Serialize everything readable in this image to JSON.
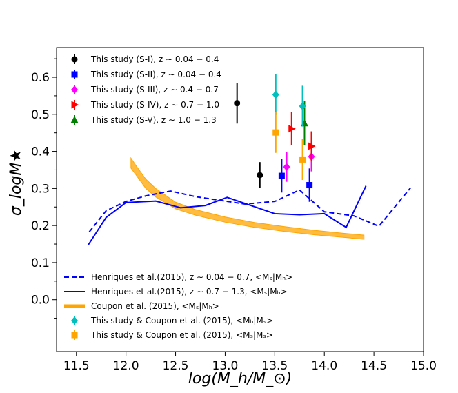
{
  "chart_data": {
    "type": "scatter",
    "xlabel": "log(M_h/M_⊙)",
    "ylabel": "σ_logM★",
    "xlim": [
      11.3,
      15.0
    ],
    "ylim": [
      -0.14,
      0.68
    ],
    "xticks": [
      "11.5",
      "12.0",
      "12.5",
      "13.0",
      "13.5",
      "14.0",
      "14.5",
      "15.0"
    ],
    "yticks": [
      "0.0",
      "0.1",
      "0.2",
      "0.3",
      "0.4",
      "0.5",
      "0.6"
    ],
    "points": [
      {
        "name": "This study (S-I), z ~ 0.04 − 0.4",
        "legend": "This study (S-I), z ∼ 0.04 − 0.4",
        "color": "#000000",
        "marker": "circle",
        "data": [
          {
            "x": 13.12,
            "y": 0.53,
            "err": 0.055
          },
          {
            "x": 13.35,
            "y": 0.336,
            "err": 0.035
          }
        ]
      },
      {
        "name": "This study (S-II), z ~ 0.04 − 0.4",
        "legend": "This study (S-II), z ∼ 0.04 − 0.4",
        "color": "#0000ff",
        "marker": "square",
        "data": [
          {
            "x": 13.57,
            "y": 0.334,
            "err": 0.045
          },
          {
            "x": 13.85,
            "y": 0.309,
            "err": 0.045
          }
        ]
      },
      {
        "name": "This study (S-III), z ~ 0.4 − 0.7",
        "legend": "This study (S-III), z ∼ 0.4 − 0.7",
        "color": "#ff00ff",
        "marker": "diamond",
        "data": [
          {
            "x": 13.62,
            "y": 0.358,
            "err": 0.04
          },
          {
            "x": 13.87,
            "y": 0.386,
            "err": 0.04
          }
        ]
      },
      {
        "name": "This study (S-IV), z ~ 0.7 − 1.0",
        "legend": "This study (S-IV), z ∼ 0.7 − 1.0",
        "color": "#ff0000",
        "marker": "triangle-right",
        "data": [
          {
            "x": 13.67,
            "y": 0.461,
            "err": 0.045
          },
          {
            "x": 13.87,
            "y": 0.414,
            "err": 0.04
          }
        ]
      },
      {
        "name": "This study (S-V), z ~ 1.0 − 1.3",
        "legend": "This study (S-V), z ∼ 1.0 − 1.3",
        "color": "#008000",
        "marker": "triangle-up",
        "data": [
          {
            "x": 13.8,
            "y": 0.476,
            "err": 0.06
          }
        ]
      },
      {
        "name": "This study & Coupon et al. (2015), <M_h|M_s>",
        "legend": "This study & Coupon et al. (2015),  <Mₕ|Mₛ>",
        "color": "#00bfbf",
        "marker": "diamond",
        "data": [
          {
            "x": 13.51,
            "y": 0.553,
            "err": 0.055
          },
          {
            "x": 13.78,
            "y": 0.522,
            "err": 0.055
          }
        ]
      },
      {
        "name": "This study & Coupon et al. (2015), <M_s|M_s>",
        "legend": "This study & Coupon et al. (2015),  <Mₛ|Mₛ>",
        "color": "#ffa500",
        "marker": "square",
        "data": [
          {
            "x": 13.51,
            "y": 0.451,
            "err": 0.055
          },
          {
            "x": 13.78,
            "y": 0.378,
            "err": 0.055
          }
        ]
      }
    ],
    "lines": [
      {
        "name": "Henriques et al.(2015), z ~ 0.04 − 0.7, <M_s|M_h>",
        "legend": "Henriques et al.(2015), z ∼ 0.04 − 0.7,  <Mₛ|Mₕ>",
        "color": "#0000ff",
        "style": "dashed",
        "x": [
          11.63,
          11.8,
          12.0,
          12.2,
          12.45,
          12.7,
          12.95,
          13.2,
          13.5,
          13.75,
          14.0,
          14.3,
          14.55,
          14.87
        ],
        "y": [
          0.183,
          0.24,
          0.265,
          0.28,
          0.293,
          0.278,
          0.268,
          0.258,
          0.265,
          0.296,
          0.237,
          0.226,
          0.198,
          0.302
        ]
      },
      {
        "name": "Henriques et al.(2015), z ~ 0.7 − 1.3, <M_s|M_h>",
        "legend": "Henriques et al.(2015), z ∼ 0.7 − 1.3,  <Mₛ|Mₕ>",
        "color": "#0000ff",
        "style": "solid",
        "x": [
          11.62,
          11.8,
          12.0,
          12.3,
          12.55,
          12.8,
          13.02,
          13.25,
          13.5,
          13.75,
          14.0,
          14.22,
          14.42
        ],
        "y": [
          0.148,
          0.222,
          0.262,
          0.266,
          0.248,
          0.254,
          0.276,
          0.255,
          0.232,
          0.229,
          0.232,
          0.195,
          0.307
        ]
      }
    ],
    "bands": [
      {
        "name": "Coupon et al. (2015), <M_s|M_h>",
        "legend": "Coupon et al. (2015),     <Mₛ|Mₕ>",
        "color": "#ffa500",
        "x": [
          12.05,
          12.1,
          12.2,
          12.3,
          12.5,
          12.7,
          13.0,
          13.3,
          13.6,
          13.9,
          14.2,
          14.4
        ],
        "y_low": [
          0.355,
          0.337,
          0.3,
          0.277,
          0.245,
          0.228,
          0.209,
          0.195,
          0.184,
          0.175,
          0.168,
          0.163
        ],
        "y_high": [
          0.382,
          0.362,
          0.325,
          0.3,
          0.263,
          0.243,
          0.223,
          0.208,
          0.197,
          0.187,
          0.179,
          0.174
        ]
      }
    ]
  }
}
